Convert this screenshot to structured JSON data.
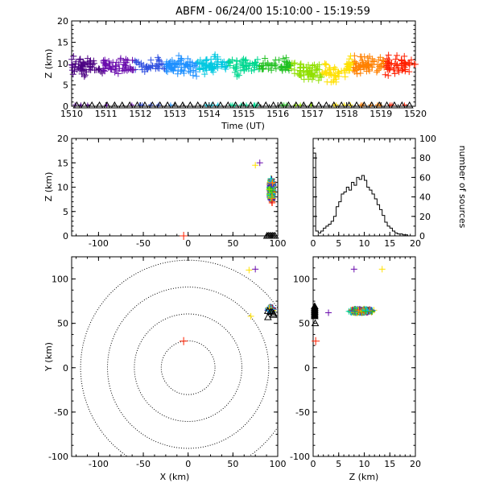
{
  "title": "ABFM - 06/24/00 15:10:00 - 15:19:59",
  "colors": {
    "palette": [
      "#4b0082",
      "#6a0dad",
      "#3050e0",
      "#1e90ff",
      "#00c8e0",
      "#00d890",
      "#20c020",
      "#90e000",
      "#ffe000",
      "#ff8000",
      "#ff2000"
    ],
    "station": "#000000",
    "center": "#ff2000"
  },
  "chart_data": [
    {
      "id": "time-height",
      "type": "scatter",
      "xlabel": "Time (UT)",
      "ylabel": "Z (km)",
      "xlim": [
        1510,
        1520
      ],
      "ylim": [
        0,
        20
      ],
      "x_tick_labels": [
        "1510",
        "1511",
        "1512",
        "1513",
        "1514",
        "1515",
        "1516",
        "1517",
        "1518",
        "1519",
        "1520"
      ],
      "y_tick_labels": [
        "0",
        "5",
        "10",
        "15",
        "20"
      ],
      "markers": "plus, colored by time",
      "bottom_triangles": "station markers near Z=0"
    },
    {
      "id": "xz-projection",
      "type": "scatter",
      "xlabel": "",
      "ylabel": "Z (km)",
      "xlim": [
        -130,
        100
      ],
      "ylim": [
        0,
        20
      ],
      "x_tick_labels": [
        "-100",
        "-50",
        "0",
        "50",
        "100"
      ],
      "y_tick_labels": [
        "0",
        "5",
        "10",
        "15",
        "20"
      ],
      "cluster": {
        "x_center": 93,
        "z_range": [
          3,
          15
        ]
      },
      "center_marker": {
        "x": -5,
        "z": 0
      }
    },
    {
      "id": "height-histogram",
      "type": "bar",
      "xlabel": "",
      "ylabel": "number of sources",
      "xlim": [
        0,
        20
      ],
      "ylim": [
        0,
        100
      ],
      "x_tick_labels": [
        "0",
        "5",
        "10",
        "15",
        "20"
      ],
      "y_tick_labels": [
        "0",
        "20",
        "40",
        "60",
        "80",
        "100"
      ],
      "bin_width_km": 0.5,
      "bins_z_start": [
        0,
        0.5,
        1,
        1.5,
        2,
        2.5,
        3,
        3.5,
        4,
        4.5,
        5,
        5.5,
        6,
        6.5,
        7,
        7.5,
        8,
        8.5,
        9,
        9.5,
        10,
        10.5,
        11,
        11.5,
        12,
        12.5,
        13,
        13.5,
        14,
        14.5,
        15,
        15.5,
        16,
        16.5,
        17,
        17.5,
        18,
        18.5,
        19,
        19.5
      ],
      "values": [
        85,
        5,
        3,
        5,
        8,
        10,
        12,
        15,
        20,
        30,
        35,
        43,
        45,
        50,
        47,
        55,
        52,
        60,
        58,
        62,
        57,
        50,
        47,
        43,
        38,
        32,
        27,
        21,
        14,
        10,
        8,
        5,
        3,
        2,
        2,
        1,
        1,
        0,
        0,
        0
      ]
    },
    {
      "id": "plan-view",
      "type": "scatter",
      "xlabel": "X (km)",
      "ylabel": "Y (km)",
      "xlim": [
        -130,
        100
      ],
      "ylim": [
        -100,
        125
      ],
      "x_tick_labels": [
        "-100",
        "-50",
        "0",
        "50",
        "100"
      ],
      "y_tick_labels": [
        "-100",
        "-50",
        "0",
        "50",
        "100"
      ],
      "range_rings_km": [
        30,
        60,
        90,
        120
      ],
      "cluster": {
        "x_center": 92,
        "y_center": 66
      },
      "center_marker": {
        "x": -5,
        "y": 30
      }
    },
    {
      "id": "zy-projection",
      "type": "scatter",
      "xlabel": "Z (km)",
      "ylabel": "",
      "xlim": [
        0,
        20
      ],
      "ylim": [
        -100,
        125
      ],
      "x_tick_labels": [
        "0",
        "5",
        "10",
        "15",
        "20"
      ],
      "y_tick_labels": [
        "-100",
        "-50",
        "0",
        "50",
        "100"
      ],
      "cluster": {
        "z_range": [
          4,
          14
        ],
        "y_center": 64
      }
    }
  ]
}
